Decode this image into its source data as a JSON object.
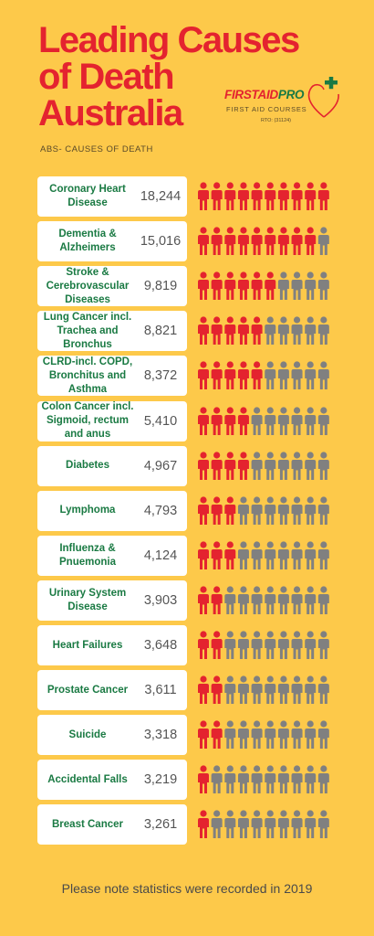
{
  "title_lines": [
    "Leading Causes",
    "of Death",
    "Australia"
  ],
  "logo": {
    "name_part1": "FIRSTAID",
    "name_part2": "PRO",
    "tagline": "FIRST AID COURSES",
    "rto": "RTO: (31124)"
  },
  "section_label": "ABS- CAUSES OF DEATH",
  "footer_note": "Please note statistics were recorded in 2019",
  "colors": {
    "background": "#fdc94a",
    "title": "#e4232f",
    "cause_text": "#1a7a43",
    "icon_filled": "#e4232f",
    "icon_empty": "#808080",
    "card": "#ffffff"
  },
  "icon_total": 10,
  "chart_data": {
    "type": "pictograph",
    "title": "Leading Causes of Death Australia",
    "subtitle": "ABS- CAUSES OF DEATH",
    "rows": [
      {
        "cause": "Coronary Heart Disease",
        "count": "18,244",
        "value": 18244,
        "icons_filled": 10
      },
      {
        "cause": "Dementia & Alzheimers",
        "count": "15,016",
        "value": 15016,
        "icons_filled": 9
      },
      {
        "cause": "Stroke & Cerebrovascular Diseases",
        "count": "9,819",
        "value": 9819,
        "icons_filled": 6
      },
      {
        "cause": "Lung Cancer incl. Trachea and Bronchus",
        "count": "8,821",
        "value": 8821,
        "icons_filled": 5
      },
      {
        "cause": "CLRD-incl. COPD, Bronchitus and Asthma",
        "count": "8,372",
        "value": 8372,
        "icons_filled": 5
      },
      {
        "cause": "Colon Cancer incl. Sigmoid, rectum and anus",
        "count": "5,410",
        "value": 5410,
        "icons_filled": 4
      },
      {
        "cause": "Diabetes",
        "count": "4,967",
        "value": 4967,
        "icons_filled": 4
      },
      {
        "cause": "Lymphoma",
        "count": "4,793",
        "value": 4793,
        "icons_filled": 3
      },
      {
        "cause": "Influenza & Pnuemonia",
        "count": "4,124",
        "value": 4124,
        "icons_filled": 3
      },
      {
        "cause": "Urinary System Disease",
        "count": "3,903",
        "value": 3903,
        "icons_filled": 2
      },
      {
        "cause": "Heart Failures",
        "count": "3,648",
        "value": 3648,
        "icons_filled": 2
      },
      {
        "cause": "Prostate Cancer",
        "count": "3,611",
        "value": 3611,
        "icons_filled": 2
      },
      {
        "cause": "Suicide",
        "count": "3,318",
        "value": 3318,
        "icons_filled": 2
      },
      {
        "cause": "Accidental Falls",
        "count": "3,219",
        "value": 3219,
        "icons_filled": 1
      },
      {
        "cause": "Breast Cancer",
        "count": "3,261",
        "value": 3261,
        "icons_filled": 1
      }
    ]
  }
}
